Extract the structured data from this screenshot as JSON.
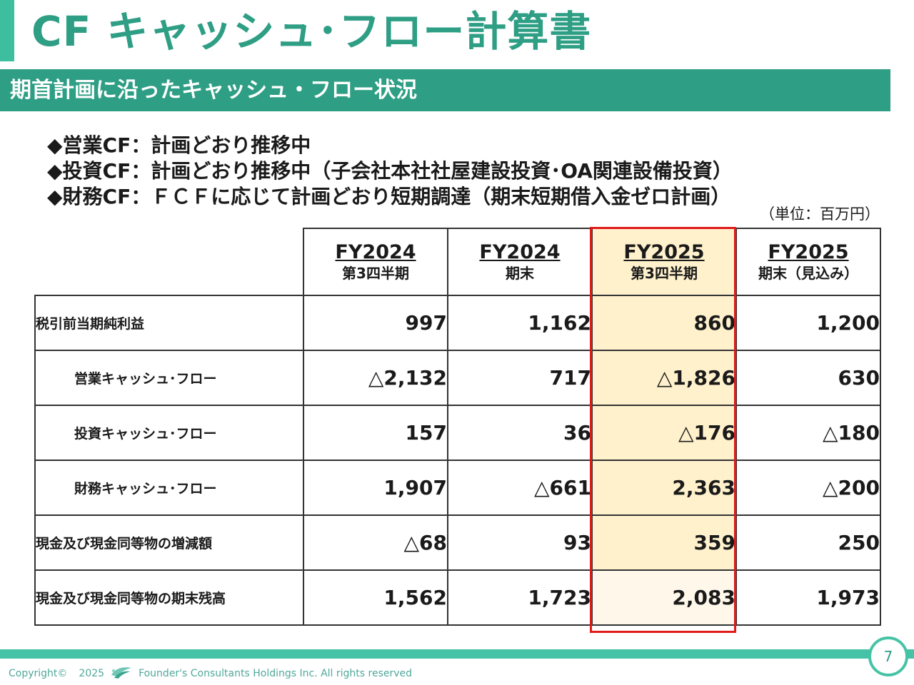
{
  "header": {
    "title": "CF  キャッシュ･フロー計算書",
    "subtitle": "期首計画に沿ったキャッシュ・フロー状況"
  },
  "bullets": [
    "◆営業CF：計画どおり推移中",
    "◆投資CF：計画どおり推移中（子会社本社社屋建設投資･OA関連設備投資）",
    "◆財務CF：ＦＣＦに応じて計画どおり短期調達（期末短期借入金ゼロ計画）"
  ],
  "unit_note": "（単位：百万円）",
  "table": {
    "columns": [
      {
        "label": "FY2024",
        "sub": "第3四半期"
      },
      {
        "label": "FY2024",
        "sub": "期末"
      },
      {
        "label": "FY2025",
        "sub": "第3四半期"
      },
      {
        "label": "FY2025",
        "sub": "期末（見込み）"
      }
    ],
    "highlighted_column": 2,
    "rows": [
      {
        "label": "税引前当期純利益",
        "values": [
          "997",
          "1,162",
          "860",
          "1,200"
        ]
      },
      {
        "label": "営業キャッシュ･フロー",
        "values": [
          "△2,132",
          "717",
          "△1,826",
          "630"
        ]
      },
      {
        "label": "投資キャッシュ･フロー",
        "values": [
          "157",
          "36",
          "△176",
          "△180"
        ]
      },
      {
        "label": "財務キャッシュ･フロー",
        "values": [
          "1,907",
          "△661",
          "2,363",
          "△200"
        ]
      },
      {
        "label": "現金及び現金同等物の増減額",
        "values": [
          "△68",
          "93",
          "359",
          "250"
        ]
      },
      {
        "label": "現金及び現金同等物の期末残高",
        "values": [
          "1,562",
          "1,723",
          "2,083",
          "1,973"
        ]
      }
    ]
  },
  "footer": {
    "copyright": "Copyright©",
    "year": "2025",
    "logo_icon": "company-logo-icon",
    "company": "Founder's Consultants Holdings Inc.  All rights reserved",
    "page_number": "7"
  },
  "colors": {
    "accent": "#2e9e84",
    "accent_light": "#46c3a6",
    "highlight_fill": "#fff1cc",
    "highlight_border": "#e01919"
  }
}
